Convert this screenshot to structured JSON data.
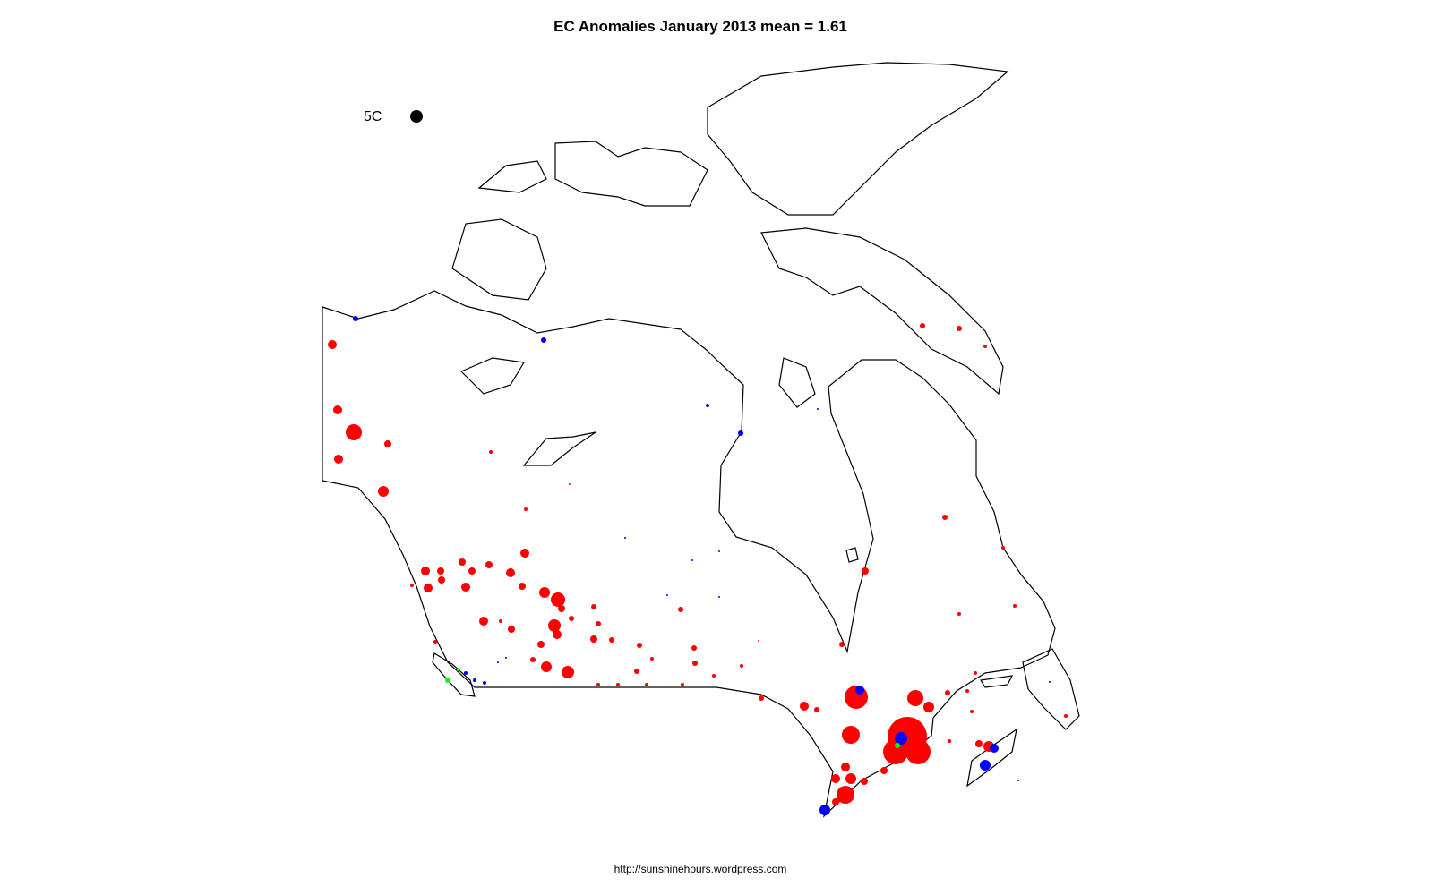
{
  "title": "EC Anomalies January 2013  mean = 1.61",
  "legend": {
    "label": "5C",
    "symbol_color": "#000000"
  },
  "footer": "http://sunshinehours.wordpress.com",
  "colors": {
    "positive": "#ff0000",
    "negative": "#0000ff",
    "near_zero": "#00ff00",
    "outline": "#000000"
  }
}
